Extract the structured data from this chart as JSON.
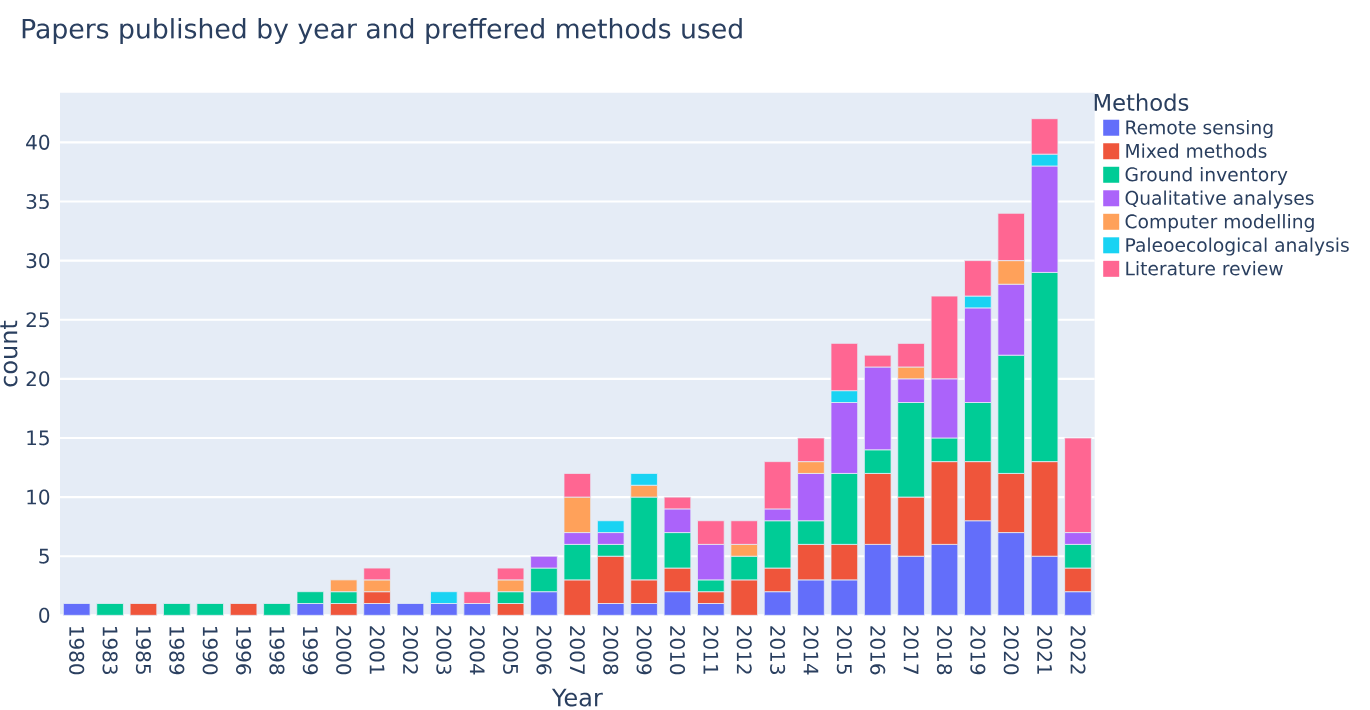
{
  "chart_data": {
    "type": "bar",
    "stacked": true,
    "title": "Papers published by year and preffered methods used",
    "xlabel": "Year",
    "ylabel": "count",
    "legend_title": "Methods",
    "legend": "right",
    "grid": "y",
    "ylim": [
      0,
      44.2
    ],
    "yticks": [
      0,
      5,
      10,
      15,
      20,
      25,
      30,
      35,
      40
    ],
    "categories": [
      "1980",
      "1983",
      "1985",
      "1989",
      "1990",
      "1996",
      "1998",
      "1999",
      "2000",
      "2001",
      "2002",
      "2003",
      "2004",
      "2005",
      "2006",
      "2007",
      "2008",
      "2009",
      "2010",
      "2011",
      "2012",
      "2013",
      "2014",
      "2015",
      "2016",
      "2017",
      "2018",
      "2019",
      "2020",
      "2021",
      "2022"
    ],
    "series": [
      {
        "name": "Remote sensing",
        "color": "#636efa",
        "values": [
          1,
          null,
          null,
          null,
          null,
          null,
          null,
          1,
          null,
          1,
          1,
          1,
          1,
          null,
          2,
          null,
          1,
          1,
          2,
          1,
          null,
          2,
          3,
          3,
          6,
          5,
          6,
          8,
          7,
          5,
          2
        ]
      },
      {
        "name": "Mixed methods",
        "color": "#ef553b",
        "values": [
          null,
          null,
          1,
          null,
          null,
          1,
          null,
          null,
          1,
          1,
          null,
          null,
          null,
          1,
          null,
          3,
          4,
          2,
          2,
          1,
          3,
          2,
          3,
          3,
          6,
          5,
          7,
          5,
          5,
          8,
          2
        ]
      },
      {
        "name": "Ground inventory",
        "color": "#00cc96",
        "values": [
          null,
          1,
          null,
          1,
          1,
          null,
          1,
          1,
          1,
          null,
          null,
          null,
          null,
          1,
          2,
          3,
          1,
          7,
          3,
          1,
          2,
          4,
          2,
          6,
          2,
          8,
          2,
          5,
          10,
          16,
          2
        ]
      },
      {
        "name": "Qualitative analyses",
        "color": "#ab63fa",
        "values": [
          null,
          null,
          null,
          null,
          null,
          null,
          null,
          null,
          null,
          null,
          null,
          null,
          null,
          null,
          1,
          1,
          1,
          null,
          2,
          3,
          null,
          1,
          4,
          6,
          7,
          2,
          5,
          8,
          6,
          9,
          1
        ]
      },
      {
        "name": "Computer modelling",
        "color": "#ffa15a",
        "values": [
          null,
          null,
          null,
          null,
          null,
          null,
          null,
          null,
          1,
          1,
          null,
          null,
          null,
          1,
          null,
          3,
          null,
          1,
          null,
          null,
          1,
          null,
          1,
          null,
          null,
          1,
          null,
          null,
          2,
          null,
          null
        ]
      },
      {
        "name": "Paleoecological analysis",
        "color": "#19d3f3",
        "values": [
          null,
          null,
          null,
          null,
          null,
          null,
          null,
          null,
          null,
          null,
          null,
          1,
          null,
          null,
          null,
          null,
          1,
          1,
          null,
          null,
          null,
          null,
          null,
          1,
          null,
          null,
          null,
          1,
          null,
          1,
          null
        ]
      },
      {
        "name": "Literature review",
        "color": "#ff6692",
        "values": [
          null,
          null,
          null,
          null,
          null,
          null,
          null,
          null,
          null,
          1,
          null,
          null,
          1,
          1,
          null,
          2,
          null,
          null,
          1,
          2,
          2,
          4,
          2,
          4,
          1,
          2,
          7,
          3,
          4,
          3,
          8
        ]
      }
    ]
  }
}
